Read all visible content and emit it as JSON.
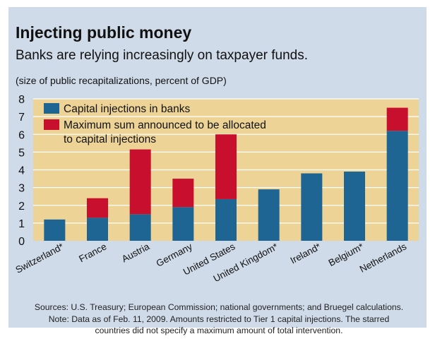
{
  "header": {
    "title": "Injecting public money",
    "subtitle": "Banks are relying increasingly on taxpayer funds.",
    "units": "(size of public recapitalizations, percent of GDP)"
  },
  "colors": {
    "capital": "#1e6593",
    "maximum": "#c8102e",
    "plot_background": "#edd496",
    "panel_background": "#cfdbe8"
  },
  "chart_data": {
    "type": "bar",
    "stacked": true,
    "categories": [
      "Switzerland*",
      "France",
      "Austria",
      "Germany",
      "United States",
      "United Kingdom*",
      "Ireland*",
      "Belgium*",
      "Netherlands"
    ],
    "series": [
      {
        "name": "Capital injections in banks",
        "values": [
          1.2,
          1.3,
          1.5,
          1.9,
          2.35,
          2.9,
          3.8,
          3.9,
          6.2
        ]
      },
      {
        "name": "Maximum sum announced to be allocated to capital injections",
        "values": [
          0,
          1.1,
          3.65,
          1.6,
          3.65,
          0,
          0,
          0,
          1.3
        ]
      }
    ],
    "yticks": [
      0,
      1,
      2,
      3,
      4,
      5,
      6,
      7,
      8
    ],
    "ylim": [
      0,
      8
    ],
    "grid": true,
    "legend_position": "top-left",
    "legend": {
      "capital": "Capital injections in banks",
      "maximum_line1": "Maximum sum announced to be allocated",
      "maximum_line2": "to capital injections"
    }
  },
  "footer": {
    "sources": "Sources: U.S. Treasury; European Commission; national governments; and Bruegel calculations.",
    "note_line1": "Note: Data as of Feb. 11, 2009. Amounts restricted to Tier 1 capital injections. The starred",
    "note_line2": "countries did not specify a maximum amount of total intervention."
  }
}
